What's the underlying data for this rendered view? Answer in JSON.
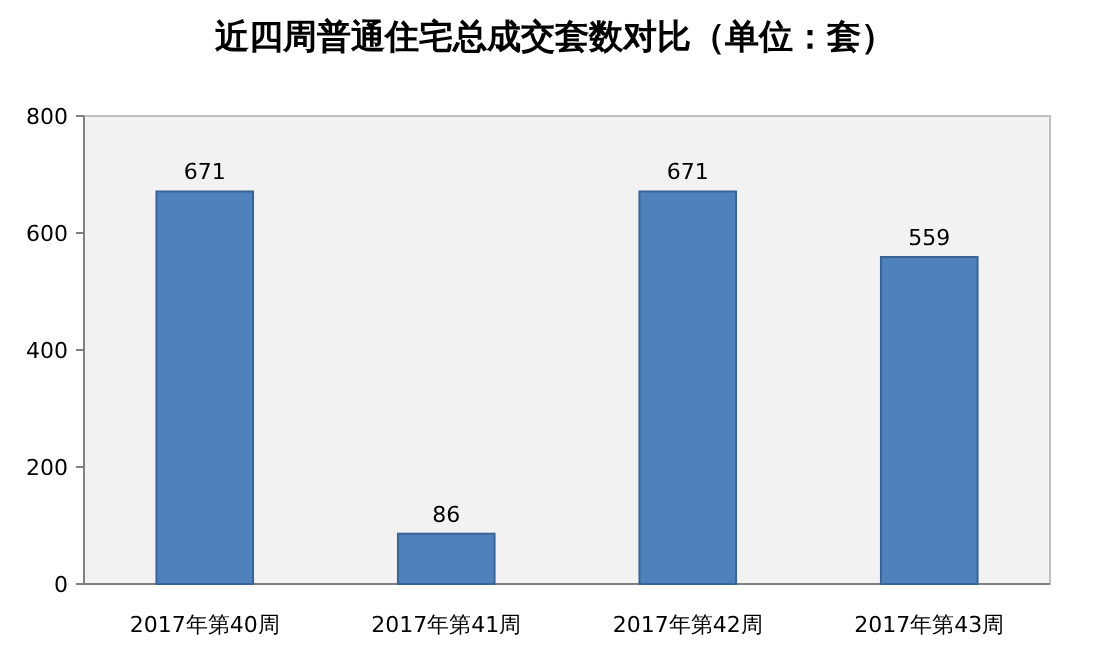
{
  "chart_data": {
    "type": "bar",
    "title": "近四周普通住宅总成交套数对比（单位：套）",
    "categories": [
      "2017年第40周",
      "2017年第41周",
      "2017年第42周",
      "2017年第43周"
    ],
    "values": [
      671,
      86,
      671,
      559
    ],
    "color": "#4f81bd",
    "ylim": [
      0,
      800
    ],
    "yticks": [
      0,
      200,
      400,
      600,
      800
    ],
    "data_labels": true
  }
}
